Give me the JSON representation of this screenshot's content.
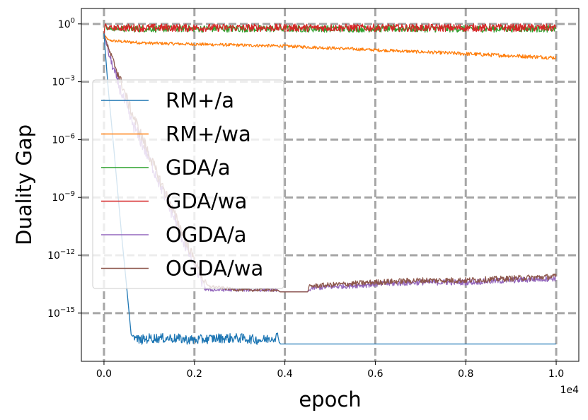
{
  "chart_data": {
    "type": "line",
    "title": "",
    "xlabel": "epoch",
    "ylabel": "Duality Gap",
    "x_offset_label": "1e4",
    "xlim": [
      -0.05,
      1.05
    ],
    "ylog_range": [
      -17.5,
      0.8
    ],
    "xticks": [
      {
        "value": 0.0,
        "label": "0.0"
      },
      {
        "value": 0.2,
        "label": "0.2"
      },
      {
        "value": 0.4,
        "label": "0.4"
      },
      {
        "value": 0.6,
        "label": "0.6"
      },
      {
        "value": 0.8,
        "label": "0.8"
      },
      {
        "value": 1.0,
        "label": "1.0"
      }
    ],
    "yticks": [
      {
        "exp": 0,
        "base": "10",
        "sup": "0"
      },
      {
        "exp": -3,
        "base": "10",
        "sup": "−3"
      },
      {
        "exp": -6,
        "base": "10",
        "sup": "−6"
      },
      {
        "exp": -9,
        "base": "10",
        "sup": "−9"
      },
      {
        "exp": -12,
        "base": "10",
        "sup": "−12"
      },
      {
        "exp": -15,
        "base": "10",
        "sup": "−15"
      }
    ],
    "grid": true,
    "legend_position": "upper-left",
    "series": [
      {
        "name": "RM+/a",
        "color": "#1f77b4",
        "x": [
          0.0,
          0.003,
          0.01,
          0.02,
          0.03,
          0.04,
          0.05,
          0.06,
          0.07,
          0.08,
          0.1,
          0.15,
          0.2,
          0.25,
          0.3,
          0.35,
          0.385,
          0.39,
          0.5,
          0.6,
          0.7,
          0.8,
          0.9,
          1.0
        ],
        "log10_y": [
          -0.5,
          -1.5,
          -3.5,
          -6.0,
          -8.6,
          -11.2,
          -13.6,
          -16.1,
          -16.3,
          -16.4,
          -16.3,
          -16.3,
          -16.4,
          -16.3,
          -16.3,
          -16.4,
          -16.2,
          -16.6,
          -16.6,
          -16.6,
          -16.6,
          -16.6,
          -16.6,
          -16.6
        ],
        "noise": [
          0,
          0,
          0,
          0,
          0,
          0,
          0,
          0,
          0.2,
          0.25,
          0.25,
          0.25,
          0.25,
          0.25,
          0.25,
          0.25,
          0.25,
          0,
          0,
          0,
          0,
          0,
          0,
          0
        ]
      },
      {
        "name": "RM+/wa",
        "color": "#ff7f0e",
        "x": [
          0.0,
          0.002,
          0.01,
          0.03,
          0.1,
          0.2,
          0.3,
          0.4,
          0.5,
          0.6,
          0.7,
          0.8,
          0.9,
          1.0
        ],
        "log10_y": [
          -0.5,
          -0.6,
          -0.85,
          -0.9,
          -1.0,
          -1.05,
          -1.1,
          -1.15,
          -1.25,
          -1.35,
          -1.45,
          -1.55,
          -1.65,
          -1.75
        ],
        "noise": [
          0,
          0,
          0.05,
          0.08,
          0.08,
          0.08,
          0.08,
          0.08,
          0.08,
          0.08,
          0.08,
          0.1,
          0.1,
          0.1
        ]
      },
      {
        "name": "GDA/a",
        "color": "#2ca02c",
        "x": [
          0.0,
          0.003,
          0.006,
          0.05,
          0.2,
          0.4,
          0.6,
          0.8,
          1.0
        ],
        "log10_y": [
          -0.5,
          0.0,
          -0.25,
          -0.25,
          -0.25,
          -0.25,
          -0.25,
          -0.25,
          -0.25
        ],
        "noise": [
          0,
          0,
          0.1,
          0.18,
          0.18,
          0.18,
          0.18,
          0.18,
          0.18
        ]
      },
      {
        "name": "GDA/wa",
        "color": "#d62728",
        "x": [
          0.0,
          0.003,
          0.006,
          0.05,
          0.2,
          0.4,
          0.6,
          0.8,
          1.0
        ],
        "log10_y": [
          -0.5,
          0.05,
          -0.2,
          -0.2,
          -0.2,
          -0.2,
          -0.2,
          -0.2,
          -0.2
        ],
        "noise": [
          0,
          0,
          0.1,
          0.2,
          0.2,
          0.2,
          0.2,
          0.2,
          0.2
        ]
      },
      {
        "name": "OGDA/a",
        "color": "#9467bd",
        "x": [
          0.0,
          0.01,
          0.03,
          0.06,
          0.1,
          0.14,
          0.18,
          0.22,
          0.23,
          0.3,
          0.38,
          0.39,
          0.45,
          0.46,
          0.6,
          0.7,
          0.8,
          0.9,
          1.0
        ],
        "log10_y": [
          -0.5,
          -1.5,
          -3.0,
          -5.0,
          -7.0,
          -9.2,
          -11.5,
          -13.6,
          -13.8,
          -13.8,
          -13.8,
          -13.9,
          -13.9,
          -13.7,
          -13.5,
          -13.4,
          -13.4,
          -13.3,
          -13.2
        ],
        "noise": [
          0,
          0.2,
          0.3,
          0.35,
          0.35,
          0.35,
          0.35,
          0.25,
          0.08,
          0.08,
          0.08,
          0,
          0,
          0.12,
          0.15,
          0.15,
          0.15,
          0.15,
          0.15
        ]
      },
      {
        "name": "OGDA/wa",
        "color": "#8c564b",
        "x": [
          0.0,
          0.01,
          0.03,
          0.06,
          0.1,
          0.14,
          0.18,
          0.22,
          0.23,
          0.3,
          0.38,
          0.39,
          0.45,
          0.455,
          0.6,
          0.7,
          0.8,
          0.9,
          1.0
        ],
        "log10_y": [
          -0.5,
          -1.3,
          -2.5,
          -4.5,
          -6.8,
          -9.0,
          -11.2,
          -13.3,
          -13.6,
          -13.8,
          -13.8,
          -13.9,
          -13.9,
          -13.6,
          -13.4,
          -13.3,
          -13.3,
          -13.2,
          -13.1
        ],
        "noise": [
          0,
          0.15,
          0.25,
          0.3,
          0.3,
          0.3,
          0.3,
          0.2,
          0.08,
          0.08,
          0.08,
          0,
          0,
          0.12,
          0.15,
          0.15,
          0.15,
          0.15,
          0.15
        ]
      }
    ]
  }
}
